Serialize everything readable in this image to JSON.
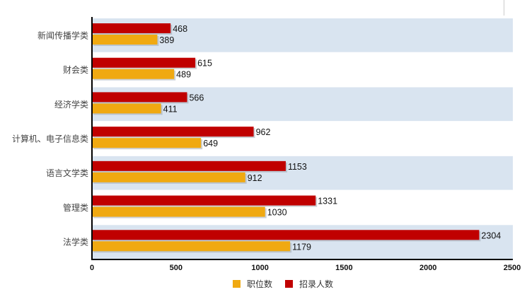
{
  "chart_data": {
    "type": "bar",
    "orientation": "horizontal",
    "categories": [
      "新闻传播学类",
      "财会类",
      "经济学类",
      "计算机、电子信息类",
      "语言文学类",
      "管理类",
      "法学类"
    ],
    "series": [
      {
        "name": "招录人数",
        "color": "#c00000",
        "values": [
          468,
          615,
          566,
          962,
          1153,
          1331,
          2304
        ]
      },
      {
        "name": "职位数",
        "color": "#f0a911",
        "values": [
          389,
          489,
          411,
          649,
          912,
          1030,
          1179
        ]
      }
    ],
    "xlim": [
      0,
      2500
    ],
    "xticks": [
      "0",
      "500",
      "1000",
      "1500",
      "2000",
      "2500"
    ],
    "legend_order": [
      "职位数",
      "招录人数"
    ],
    "legend_position": "bottom",
    "band_color": "#d9e4f0",
    "data_labels": true,
    "title": "",
    "xlabel": "",
    "ylabel": ""
  }
}
